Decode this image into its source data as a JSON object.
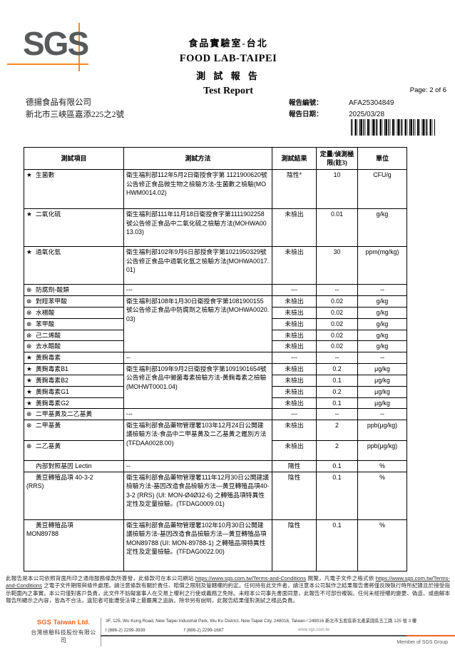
{
  "colors": {
    "accent_orange": "#f68b1f",
    "logo_gray": "#58595b",
    "brand_orange": "#f26522"
  },
  "header": {
    "logo_text": "SGS",
    "lab_name_zh": "食品實驗室-台北",
    "lab_name_en": "FOOD LAB-TAIPEI",
    "report_title_zh": "測 試 報 告",
    "report_title_en": "Test Report",
    "page_label": "Page: 2 of 6",
    "client_name": "德揚食品有限公司",
    "client_address": "新北市三峽區嘉添225之2號",
    "report_no_label": "報告編號：",
    "report_no": "AFA25304849",
    "report_date_label": "報告日期：",
    "report_date": "2025/03/28"
  },
  "table": {
    "headers": [
      "測試項目",
      "測試方法",
      "測試結果",
      "定量/偵測極限(註3)",
      "單位"
    ],
    "rows": [
      {
        "sym": "★",
        "item": "生菌數",
        "method": "衛生福利部112年5月2日衛授食字第 1121900620號公告修正食品微生物之檢驗方法-生菌數之檢驗(MOHWM0014.02)",
        "method_span": 1,
        "result": "陰性*",
        "limit": "10",
        "unit": "CFU/g"
      },
      {
        "sym": "★",
        "item": "二氧化硫",
        "method": "衛生福利部111年11月18日衛授食字第1111902258號公告修正食品中二氧化硫之檢驗方法(MOHWA0013.03)",
        "method_span": 1,
        "result": "未檢出",
        "limit": "0.01",
        "unit": "g/kg"
      },
      {
        "sym": "★",
        "item": "過氧化氫",
        "method": "衛生福利部102年9月6日部授食字第1021950329號公告修正食品中過氧化氫之檢驗方法(MOHWA0017.01)",
        "method_span": 1,
        "result": "未檢出",
        "limit": "30",
        "unit": "ppm(mg/kg)"
      },
      {
        "sym": "⊗",
        "item": "防腐劑-酸類",
        "method": "---",
        "method_span": 1,
        "result": "---",
        "limit": "--",
        "unit": "--"
      },
      {
        "sym": "⊗",
        "item": "對羥苯甲酸",
        "method": "衛生福利部108年1月30日衛授食字第1081900155號公告修正食品中防腐劑之檢驗方法(MOHWA0020.03)",
        "method_span": 5,
        "result": "未檢出",
        "limit": "0.02",
        "unit": "g/kg"
      },
      {
        "sym": "⊗",
        "item": "水楊酸",
        "result": "未檢出",
        "limit": "0.02",
        "unit": "g/kg"
      },
      {
        "sym": "⊗",
        "item": "苯甲酸",
        "result": "未檢出",
        "limit": "0.02",
        "unit": "g/kg"
      },
      {
        "sym": "⊗",
        "item": "己二烯酸",
        "result": "未檢出",
        "limit": "0.02",
        "unit": "g/kg"
      },
      {
        "sym": "⊗",
        "item": "去水醋酸",
        "result": "未檢出",
        "limit": "0.02",
        "unit": "g/kg"
      },
      {
        "sym": "★",
        "item": "黃麴毒素",
        "method": "--",
        "method_span": 1,
        "result": "---",
        "limit": "--",
        "unit": "--"
      },
      {
        "sym": "★",
        "item": "黃麴毒素B1",
        "method": "衛生福利部109年9月2日衛授食字第1091901654號公告修正食品中黴菌毒素檢驗方法-黃麴毒素之檢驗(MOHWT0001.04)",
        "method_span": 4,
        "result": "未檢出",
        "limit": "0.2",
        "unit": "μg/kg"
      },
      {
        "sym": "★",
        "item": "黃麴毒素B2",
        "result": "未檢出",
        "limit": "0.1",
        "unit": "μg/kg"
      },
      {
        "sym": "★",
        "item": "黃麴毒素G1",
        "result": "未檢出",
        "limit": "0.2",
        "unit": "μg/kg"
      },
      {
        "sym": "★",
        "item": "黃麴毒素G2",
        "result": "未檢出",
        "limit": "0.1",
        "unit": "μg/kg"
      },
      {
        "sym": "⊗",
        "item": "二甲基黃及二乙基黃",
        "method": "---",
        "method_span": 1,
        "result": "---",
        "limit": "--",
        "unit": "--"
      },
      {
        "sym": "⊗",
        "item": "二甲基黃",
        "method": "衛生福利部食品藥物管理署103年12月24日公開建議檢驗方法-食品中二甲基黃及二乙基黃之鑑別方法(TFDAA0028.00)",
        "method_span": 2,
        "result": "未檢出",
        "limit": "2",
        "unit": "ppb(μg/kg)"
      },
      {
        "sym": "⊗",
        "item": "二乙基黃",
        "result": "未檢出",
        "limit": "2",
        "unit": "ppb(μg/kg)"
      },
      {
        "sym": "",
        "item": "內部對照基因 Lectin",
        "method": "--",
        "method_span": 1,
        "result": "陽性",
        "limit": "0.1",
        "unit": "%"
      },
      {
        "sym": "",
        "item": "黃豆轉殖品項 40-3-2\n(RRS)",
        "method": "衛生福利部食品藥物管理署111年12月30日公開建議檢驗方法-基因改造食品檢驗方法—黃豆轉殖品項40-3-2 (RRS) (UI: MON-Ø4Ø32-6) 之轉殖品項特異性定性及定量檢驗。(TFDAG0009.01)",
        "method_span": 1,
        "result": "陰性",
        "limit": "0.1",
        "unit": "%"
      },
      {
        "sym": "",
        "item": "黃豆轉殖品項\nMON89788",
        "method": "衛生福利部食品藥物管理署102年10月30日公開建議檢驗方法-基因改造食品檢驗方法—黃豆轉殖品項MON89788 (UI: MON-89788-1) 之轉殖品項特異性定性及定量檢驗。(TFDAG0022.00)",
        "method_span": 1,
        "result": "陰性",
        "limit": "0.1",
        "unit": "%"
      }
    ]
  },
  "footer": {
    "terms": [
      {
        "t": "此報告是本公司依照背面所印之通用服務條款所簽發，此條款可在本公司網站 "
      },
      {
        "t": "https://www.sgs.com.tw/Terms-and-Conditions",
        "link": true
      },
      {
        "t": " 閱覽，凡電子文件之格式依 "
      },
      {
        "t": "https://www.sgs.com.tw/Terms-and-Conditions",
        "link": true
      },
      {
        "t": " 之電子文件期限與條件處理。請注意條款有關於責任、賠償之限制及管轄權的約定。任何持有此文件者，請注意本公司製作之結果報告書將僅反映執行時所紀錄且於接受指示範圍內之事實。本公司僅對客戶負責，此文件不妨礙當事人在交易上權利之行使或義務之免除。未經本公司事先書面同意，此報告不可部份複製。任何未經授權的變更、偽造、或曲解本報告所顯示之內容，皆為不合法，違犯者可能遭受法律上最嚴厲之追訴。除非另有說明，此報告結果僅對測試之樣品負責。"
      }
    ]
  },
  "bottom_bar": {
    "company_en": "SGS Taiwan Ltd.",
    "company_zh": "台灣檢驗科技股份有限公司",
    "address": "3F, 125, Wu Kung Road, New Taipei Industrial Park, Wu Ku District, New Taipei City, 248016, Taiwan / 248016 新北市五股區新北產業園區五工路 125 號 3 樓",
    "tel": "t (886-2) 2299-3939",
    "fax": "f (886-2) 2299-1687",
    "website": "www.sgs.com.tw",
    "member": "Member of SGS Group"
  }
}
